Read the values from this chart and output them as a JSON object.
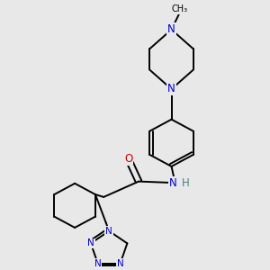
{
  "bg_color": "#e8e8e8",
  "atom_colors": {
    "N": "#0000cc",
    "O": "#cc0000",
    "H": "#4a8080",
    "C": "#000000"
  },
  "bond_color": "#000000",
  "bond_width": 1.4,
  "figsize": [
    3.0,
    3.0
  ],
  "dpi": 100
}
